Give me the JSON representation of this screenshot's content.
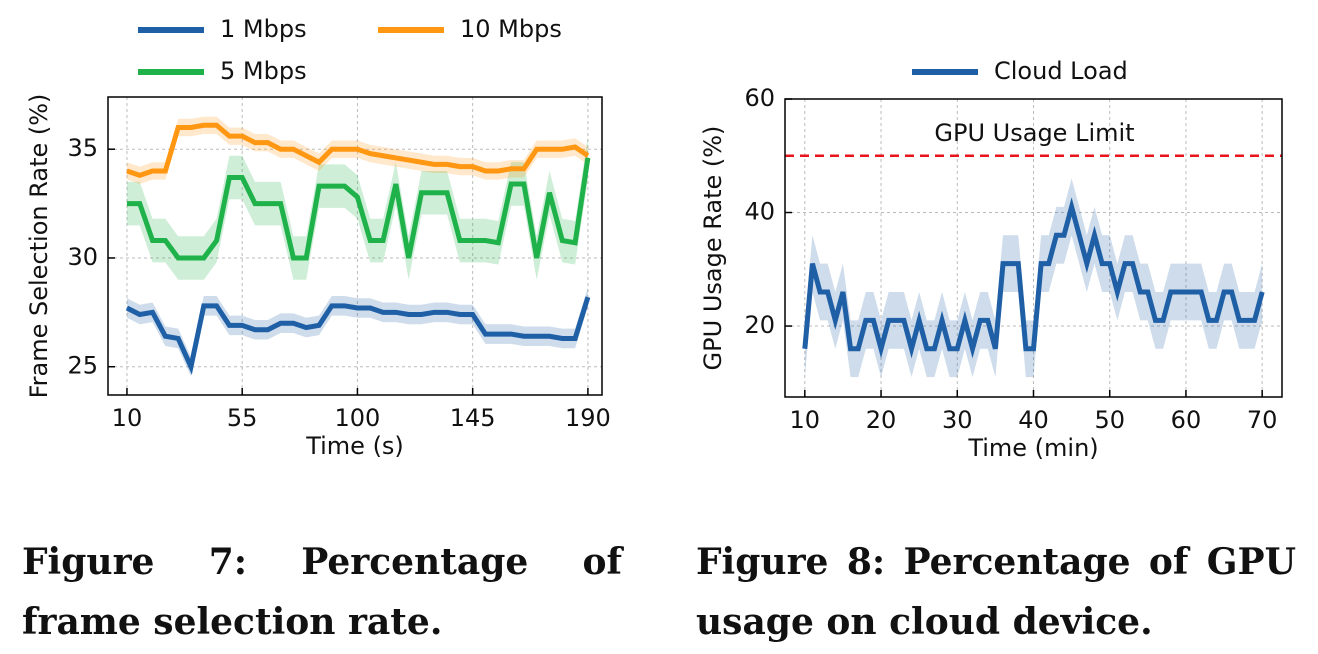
{
  "chart_data": [
    {
      "type": "line",
      "xlabel": "Time (s)",
      "ylabel": "Frame Selection Rate (%)",
      "x": [
        10,
        15,
        20,
        25,
        30,
        35,
        40,
        45,
        50,
        55,
        60,
        65,
        70,
        75,
        80,
        85,
        90,
        95,
        100,
        105,
        110,
        115,
        120,
        125,
        130,
        135,
        140,
        145,
        150,
        155,
        160,
        165,
        170,
        175,
        180,
        185,
        190
      ],
      "xlim": [
        2.6,
        195.5
      ],
      "xticks": [
        10,
        55,
        100,
        145,
        190
      ],
      "ylim": [
        23.7,
        37.4
      ],
      "yticks": [
        25,
        30,
        35
      ],
      "grid": true,
      "series": [
        {
          "name": "1 Mbps",
          "color": "#1f5fa6",
          "error": 0.45,
          "values": [
            27.7,
            27.4,
            27.5,
            26.4,
            26.3,
            25.0,
            27.8,
            27.8,
            26.9,
            26.9,
            26.7,
            26.7,
            27.0,
            27.0,
            26.8,
            26.9,
            27.8,
            27.8,
            27.7,
            27.7,
            27.5,
            27.5,
            27.4,
            27.4,
            27.5,
            27.5,
            27.4,
            27.4,
            26.5,
            26.5,
            26.5,
            26.4,
            26.4,
            26.4,
            26.3,
            26.3,
            28.2
          ]
        },
        {
          "name": "5 Mbps",
          "color": "#1fb24a",
          "error": 1.0,
          "values": [
            32.5,
            32.5,
            30.8,
            30.8,
            30.0,
            30.0,
            30.0,
            30.8,
            33.7,
            33.7,
            32.5,
            32.5,
            32.5,
            30.0,
            30.0,
            33.3,
            33.3,
            33.3,
            32.8,
            30.8,
            30.8,
            33.4,
            30.0,
            33.0,
            33.0,
            33.0,
            30.8,
            30.8,
            30.8,
            30.7,
            33.4,
            33.4,
            30.0,
            33.0,
            30.8,
            30.7,
            34.6
          ]
        },
        {
          "name": "10 Mbps",
          "color": "#ff9712",
          "error": 0.4,
          "values": [
            34.0,
            33.8,
            34.0,
            34.0,
            36.0,
            36.0,
            36.1,
            36.1,
            35.6,
            35.6,
            35.3,
            35.3,
            35.0,
            35.0,
            34.7,
            34.4,
            35.0,
            35.0,
            35.0,
            34.8,
            34.7,
            34.6,
            34.5,
            34.4,
            34.3,
            34.3,
            34.2,
            34.2,
            34.0,
            34.0,
            34.1,
            34.1,
            35.0,
            35.0,
            35.0,
            35.1,
            34.7
          ]
        }
      ],
      "caption": "Figure 7: Percentage of frame selection rate."
    },
    {
      "type": "line",
      "xlabel": "Time (min)",
      "ylabel": "GPU Usage Rate (%)",
      "x": [
        10,
        11,
        12,
        13,
        14,
        15,
        16,
        17,
        18,
        19,
        20,
        21,
        22,
        23,
        24,
        25,
        26,
        27,
        28,
        29,
        30,
        31,
        32,
        33,
        34,
        35,
        36,
        37,
        38,
        39,
        40,
        41,
        42,
        43,
        44,
        45,
        46,
        47,
        48,
        49,
        50,
        51,
        52,
        53,
        54,
        55,
        56,
        57,
        58,
        59,
        60,
        61,
        62,
        63,
        64,
        65,
        66,
        67,
        68,
        69,
        70
      ],
      "xlim": [
        7.4,
        72.6
      ],
      "xticks": [
        10,
        20,
        30,
        40,
        50,
        60,
        70
      ],
      "ylim": [
        7.5,
        60
      ],
      "yticks": [
        20,
        40,
        60
      ],
      "grid": true,
      "series": [
        {
          "name": "Cloud Load",
          "color": "#1f5fa6",
          "error": 5,
          "values": [
            16,
            31,
            26,
            26,
            21,
            26,
            16,
            16,
            21,
            21,
            16,
            21,
            21,
            21,
            16,
            21,
            16,
            16,
            21,
            16,
            16,
            21,
            16,
            21,
            21,
            16,
            31,
            31,
            31,
            16,
            16,
            31,
            31,
            36,
            36,
            41,
            36,
            31,
            36,
            31,
            31,
            26,
            31,
            31,
            26,
            26,
            21,
            21,
            26,
            26,
            26,
            26,
            26,
            21,
            21,
            26,
            26,
            21,
            21,
            21,
            26
          ]
        }
      ],
      "hline": {
        "value": 50,
        "label": "GPU Usage Limit",
        "color": "#e8141c"
      },
      "caption": "Figure 8: Percentage of GPU usage on cloud device."
    }
  ]
}
